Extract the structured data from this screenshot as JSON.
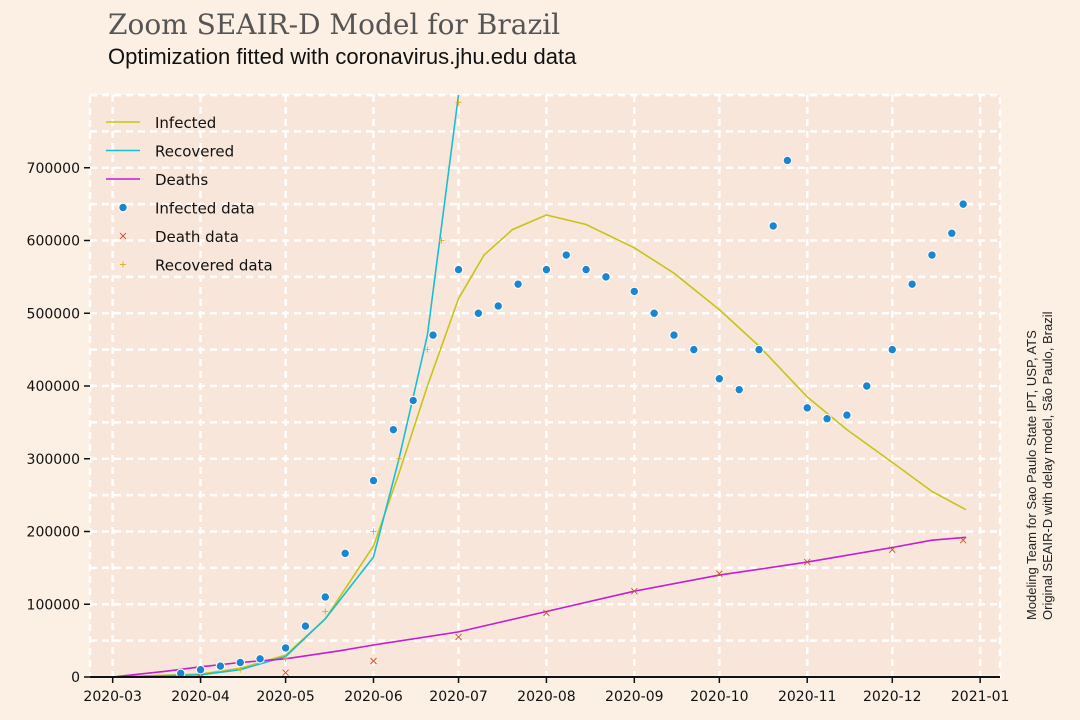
{
  "title": "Zoom SEAIR-D Model for Brazil",
  "subtitle": "Optimization fitted with coronavirus.jhu.edu data",
  "credits": {
    "line1": "Modeling Team for Sao Paulo State IPT, USP, ATS",
    "line2": "Original SEAIR-D with delay model, São Paulo, Brazil"
  },
  "colors": {
    "background": "#fcefe4",
    "plot_area": "#f9e6da",
    "infected": "#c8c31a",
    "recovered": "#19bfd0",
    "deaths": "#c21ed3",
    "infected_data": "#1a86cf",
    "death_data": "#d05030",
    "recovered_data": "#d6b020"
  },
  "chart_data": {
    "type": "line",
    "grid": true,
    "legend_position": "top-left",
    "x_type": "date",
    "xlim": [
      "2020-02-22",
      "2021-01-08"
    ],
    "ylim": [
      0,
      800000
    ],
    "x_ticks": [
      "2020-03",
      "2020-04",
      "2020-05",
      "2020-06",
      "2020-07",
      "2020-08",
      "2020-09",
      "2020-10",
      "2020-11",
      "2020-12",
      "2021-01"
    ],
    "y_ticks": [
      "0",
      "100000",
      "200000",
      "300000",
      "400000",
      "500000",
      "600000",
      "700000"
    ],
    "series": [
      {
        "name": "Infected",
        "kind": "line",
        "color": "#c8c31a",
        "x": [
          "2020-03-01",
          "2020-04-01",
          "2020-04-15",
          "2020-05-01",
          "2020-05-15",
          "2020-06-01",
          "2020-06-10",
          "2020-06-20",
          "2020-07-01",
          "2020-07-10",
          "2020-07-20",
          "2020-08-01",
          "2020-08-15",
          "2020-09-01",
          "2020-09-15",
          "2020-10-01",
          "2020-10-15",
          "2020-11-01",
          "2020-11-15",
          "2020-12-01",
          "2020-12-15",
          "2020-12-27"
        ],
        "y": [
          0,
          4000,
          12000,
          30000,
          80000,
          180000,
          280000,
          400000,
          520000,
          580000,
          615000,
          635000,
          622000,
          590000,
          555000,
          505000,
          455000,
          385000,
          340000,
          295000,
          255000,
          230000
        ]
      },
      {
        "name": "Recovered",
        "kind": "line",
        "color": "#19bfd0",
        "x": [
          "2020-03-01",
          "2020-04-01",
          "2020-04-15",
          "2020-05-01",
          "2020-05-15",
          "2020-06-01",
          "2020-06-10",
          "2020-06-20",
          "2020-06-26",
          "2020-07-01"
        ],
        "y": [
          0,
          3000,
          10000,
          28000,
          80000,
          165000,
          300000,
          470000,
          650000,
          800000
        ]
      },
      {
        "name": "Deaths",
        "kind": "line",
        "color": "#c21ed3",
        "x": [
          "2020-03-01",
          "2020-03-20",
          "2020-04-01",
          "2020-04-15",
          "2020-05-01",
          "2020-05-20",
          "2020-06-01",
          "2020-07-01",
          "2020-08-01",
          "2020-09-01",
          "2020-10-01",
          "2020-11-01",
          "2020-12-01",
          "2020-12-15",
          "2020-12-27"
        ],
        "y": [
          0,
          8000,
          14000,
          20000,
          25000,
          36000,
          44000,
          62000,
          90000,
          118000,
          140000,
          158000,
          178000,
          188000,
          192000
        ]
      },
      {
        "name": "Infected data",
        "kind": "scatter",
        "color": "#1a86cf",
        "x": [
          "2020-03-25",
          "2020-04-01",
          "2020-04-08",
          "2020-04-15",
          "2020-04-22",
          "2020-05-01",
          "2020-05-08",
          "2020-05-15",
          "2020-05-22",
          "2020-06-01",
          "2020-06-08",
          "2020-06-15",
          "2020-06-22",
          "2020-07-01",
          "2020-07-08",
          "2020-07-15",
          "2020-07-22",
          "2020-08-01",
          "2020-08-08",
          "2020-08-15",
          "2020-08-22",
          "2020-09-01",
          "2020-09-08",
          "2020-09-15",
          "2020-09-22",
          "2020-10-01",
          "2020-10-08",
          "2020-10-15",
          "2020-10-20",
          "2020-10-25",
          "2020-11-01",
          "2020-11-08",
          "2020-11-15",
          "2020-11-22",
          "2020-12-01",
          "2020-12-08",
          "2020-12-15",
          "2020-12-22",
          "2020-12-26"
        ],
        "y": [
          5000,
          10000,
          15000,
          20000,
          25000,
          40000,
          70000,
          110000,
          170000,
          270000,
          340000,
          380000,
          470000,
          560000,
          500000,
          510000,
          540000,
          560000,
          580000,
          560000,
          550000,
          530000,
          500000,
          470000,
          450000,
          410000,
          395000,
          450000,
          620000,
          710000,
          370000,
          355000,
          360000,
          400000,
          450000,
          540000,
          580000,
          610000,
          650000
        ]
      },
      {
        "name": "Death data",
        "kind": "scatter",
        "color": "#d05030",
        "x": [
          "2020-04-01",
          "2020-05-01",
          "2020-06-01",
          "2020-07-01",
          "2020-08-01",
          "2020-09-01",
          "2020-10-01",
          "2020-11-01",
          "2020-12-01",
          "2020-12-26"
        ],
        "y": [
          0,
          6000,
          22000,
          55000,
          88000,
          118000,
          142000,
          158000,
          175000,
          188000
        ]
      },
      {
        "name": "Recovered data",
        "kind": "scatter",
        "color": "#d6b020",
        "x": [
          "2020-04-15",
          "2020-05-01",
          "2020-05-15",
          "2020-06-01",
          "2020-06-10",
          "2020-06-20",
          "2020-06-25",
          "2020-07-01"
        ],
        "y": [
          10000,
          25000,
          90000,
          200000,
          300000,
          450000,
          600000,
          790000
        ]
      }
    ]
  }
}
